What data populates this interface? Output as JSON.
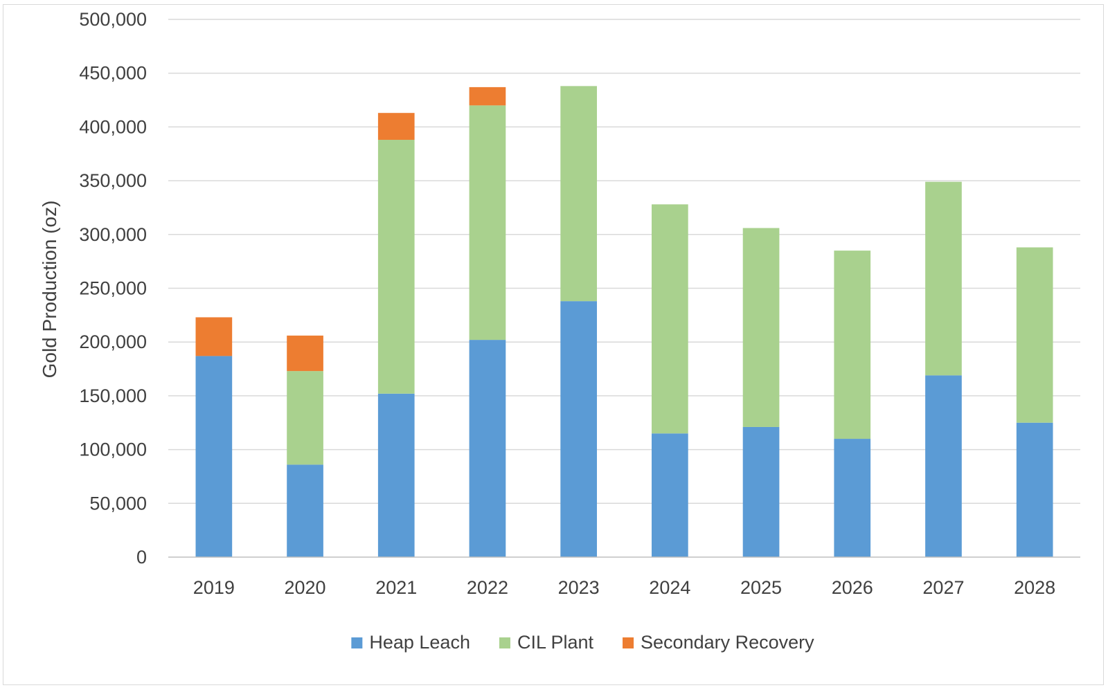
{
  "chart_data": {
    "type": "bar",
    "stacked": true,
    "title": "",
    "xlabel": "",
    "ylabel": "Gold Production (oz)",
    "ylim": [
      0,
      500000
    ],
    "yticks": [
      0,
      50000,
      100000,
      150000,
      200000,
      250000,
      300000,
      350000,
      400000,
      450000,
      500000
    ],
    "ytick_labels": [
      "0",
      "50,000",
      "100,000",
      "150,000",
      "200,000",
      "250,000",
      "300,000",
      "350,000",
      "400,000",
      "450,000",
      "500,000"
    ],
    "grid": true,
    "legend_position": "bottom",
    "categories": [
      "2019",
      "2020",
      "2021",
      "2022",
      "2023",
      "2024",
      "2025",
      "2026",
      "2027",
      "2028"
    ],
    "series": [
      {
        "name": "Heap Leach",
        "color": "#5b9bd5",
        "values": [
          187000,
          86000,
          152000,
          202000,
          238000,
          115000,
          121000,
          110000,
          169000,
          125000
        ]
      },
      {
        "name": "CIL Plant",
        "color": "#a9d18e",
        "values": [
          0,
          87000,
          236000,
          218000,
          200000,
          213000,
          185000,
          175000,
          180000,
          163000
        ]
      },
      {
        "name": "Secondary Recovery",
        "color": "#ed7d31",
        "values": [
          36000,
          33000,
          25000,
          17000,
          0,
          0,
          0,
          0,
          0,
          0
        ]
      }
    ]
  }
}
